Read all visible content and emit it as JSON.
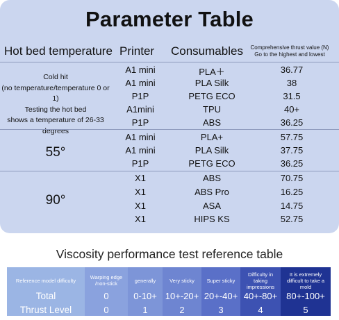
{
  "parameter_table": {
    "title": "Parameter Table",
    "headers": {
      "hot_bed_temperature": "Hot bed temperature",
      "printer": "Printer",
      "consumables": "Consumables",
      "thrust_line1": "Comprehensive thrust value (N)",
      "thrust_line2": "Go to the highest and lowest"
    },
    "groups": [
      {
        "temperature_lines": [
          "Cold hit",
          "(no temperature/temperature 0 or 1)",
          "Testing the hot bed",
          "shows a temperature of 26-33 degrees"
        ],
        "rows": [
          {
            "printer": "A1 mini",
            "consumable": "PLA＋",
            "thrust": "36.77"
          },
          {
            "printer": "A1 mini",
            "consumable": "PLA Silk",
            "thrust": "38"
          },
          {
            "printer": "P1P",
            "consumable": "PETG ECO",
            "thrust": "31.5"
          },
          {
            "printer": "A1mini",
            "consumable": "TPU",
            "thrust": "40+"
          },
          {
            "printer": "P1P",
            "consumable": "ABS",
            "thrust": "36.25"
          }
        ]
      },
      {
        "temperature_lines": [
          "55°"
        ],
        "rows": [
          {
            "printer": "A1 mini",
            "consumable": "PLA+",
            "thrust": "57.75"
          },
          {
            "printer": "A1 mini",
            "consumable": "PLA Silk",
            "thrust": "37.75"
          },
          {
            "printer": "P1P",
            "consumable": "PETG ECO",
            "thrust": "36.25"
          }
        ]
      },
      {
        "temperature_lines": [
          "90°"
        ],
        "rows": [
          {
            "printer": "X1",
            "consumable": "ABS",
            "thrust": "70.75"
          },
          {
            "printer": "X1",
            "consumable": "ABS Pro",
            "thrust": "16.25"
          },
          {
            "printer": "X1",
            "consumable": "ASA",
            "thrust": "14.75"
          },
          {
            "printer": "X1",
            "consumable": "HIPS KS",
            "thrust": "52.75"
          }
        ]
      }
    ]
  },
  "viscosity_table": {
    "title": "Viscosity performance test reference table",
    "columns": [
      {
        "header": "Reference model  difficulty",
        "total": "Total",
        "thrust_level": "Thrust Level",
        "color": "#9bb5e4"
      },
      {
        "header": "Warping edge /non-stick",
        "total": "0",
        "thrust_level": "0",
        "color": "#8aa2de"
      },
      {
        "header": "generally",
        "total": "0-10+",
        "thrust_level": "1",
        "color": "#7d95d8"
      },
      {
        "header": "Very sticky",
        "total": "10+-20+",
        "thrust_level": "2",
        "color": "#6e85d1"
      },
      {
        "header": "Super sticky",
        "total": "20+-40+",
        "thrust_level": "3",
        "color": "#5a70c8"
      },
      {
        "header": "Difficulty in taking impressions",
        "total": "40+-80+",
        "thrust_level": "4",
        "color": "#3d52b2"
      },
      {
        "header": "It is extremely difficult to take a mold",
        "total": "80+-100+",
        "thrust_level": "5",
        "color": "#1f3393"
      }
    ]
  }
}
